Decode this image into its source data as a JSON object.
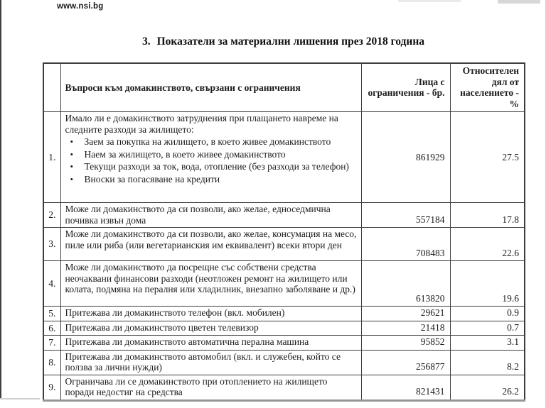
{
  "page": {
    "site": "www.nsi.bg",
    "title_number": "3.",
    "title_text": "Показатели за материални лишения през 2018 година"
  },
  "table": {
    "headers": {
      "question": "Въпроси към домакинството, свързани с ограничения",
      "persons": "Лица с ограничения - бр.",
      "share": "Относителен дял от населението - %"
    },
    "rows": [
      {
        "number": "1.",
        "question": "Имало ли е домакинството затруднения при плащането навреме на следните разходи за жилището:",
        "bullets": [
          "Заем за покупка на жилището, в което живее домакинството",
          "Наем за жилището, в което живее домакинството",
          "Текущи разходи за ток, вода, отопление (без разходи за телефон)",
          "Вноски за погасяване на кредити"
        ],
        "persons": "861929",
        "share": "27.5"
      },
      {
        "number": "2.",
        "question": "Може ли домакинството да си позволи, ако желае, едноседмична почивка извън дома",
        "persons": "557184",
        "share": "17.8"
      },
      {
        "number": "3.",
        "question": "Може ли домакинството да си позволи, ако желае, консумация на месо, пиле или риба (или вегетарианския им еквивалент) всеки втори ден",
        "persons": "708483",
        "share": "22.6"
      },
      {
        "number": "4.",
        "question": "Може ли домакинството да посрещне със собствени средства неочаквани финансови разходи (неотложен ремонт на жилището или колата, подмяна на пералня или хладилник, внезапно заболяване и др.)",
        "persons": "613820",
        "share": "19.6"
      },
      {
        "number": "5.",
        "question": "Притежава ли домакинството телефон (вкл. мобилен)",
        "persons": "29621",
        "share": "0.9"
      },
      {
        "number": "6.",
        "question": "Притежава ли домакинството цветен телевизор",
        "persons": "21418",
        "share": "0.7"
      },
      {
        "number": "7.",
        "question": "Притежава ли домакинството автоматична перална машина",
        "persons": "95852",
        "share": "3.1"
      },
      {
        "number": "8.",
        "question": "Притежава ли домакинството автомобил (вкл. и служебен, който се ползва за лични нужди)",
        "persons": "256877",
        "share": "8.2"
      },
      {
        "number": "9.",
        "question": "Ограничава ли се домакинството при отоплението на жилището поради недостиг на средства",
        "persons": "821431",
        "share": "26.2"
      }
    ]
  }
}
